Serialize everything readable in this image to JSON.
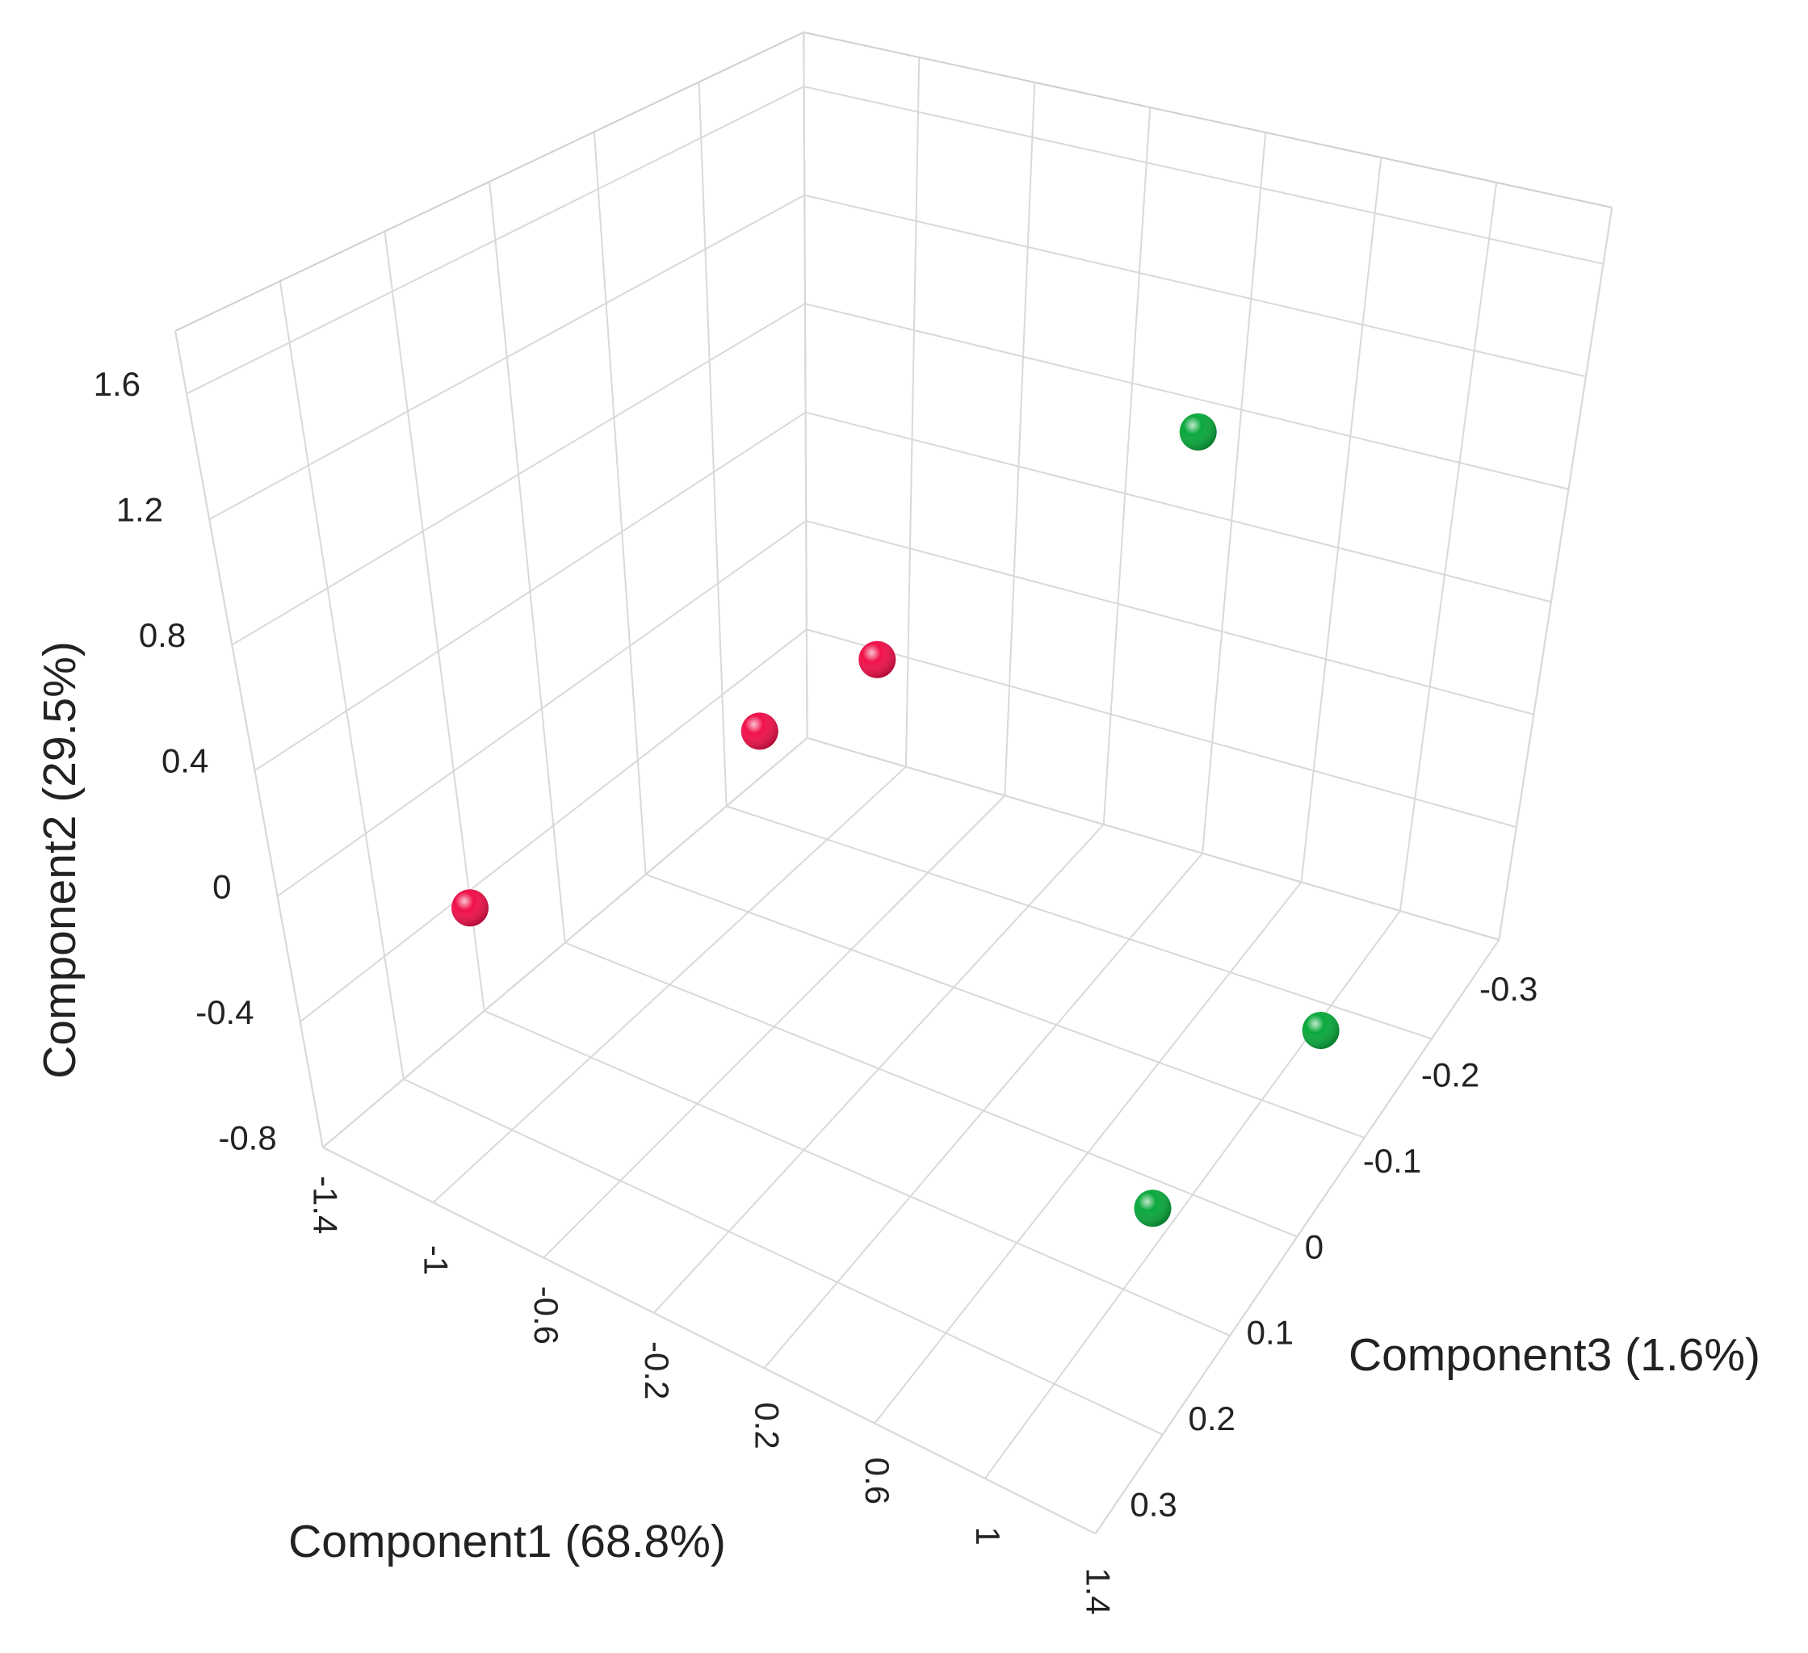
{
  "chart_data": {
    "type": "scatter3d",
    "xlabel": "Component1 (68.8%)",
    "ylabel": "Component2 (29.5%)",
    "zlabel": "Component3 (1.6%)",
    "xlim": [
      -1.4,
      1.4
    ],
    "ylim": [
      -0.8,
      1.8
    ],
    "zlim": [
      -0.3,
      0.3
    ],
    "xticks": [
      -1.4,
      -1,
      -0.6,
      -0.2,
      0.2,
      0.6,
      1,
      1.4
    ],
    "yticks": [
      -0.8,
      -0.4,
      0,
      0.4,
      0.8,
      1.2,
      1.6
    ],
    "zticks": [
      -0.3,
      -0.2,
      -0.1,
      0,
      0.1,
      0.2,
      0.3
    ],
    "grid": true,
    "series": [
      {
        "color": "#f0114a",
        "x": [
          -1.05,
          -0.6,
          -0.8
        ],
        "y": [
          -0.1,
          0.2,
          -0.1
        ],
        "z": [
          0.2,
          0,
          -0.2
        ]
      },
      {
        "color": "#0aa83c",
        "x": [
          0.9,
          1.2,
          1.1
        ],
        "y": [
          1.7,
          -0.5,
          -0.5
        ],
        "z": [
          0,
          -0.1,
          0.1
        ]
      }
    ]
  }
}
